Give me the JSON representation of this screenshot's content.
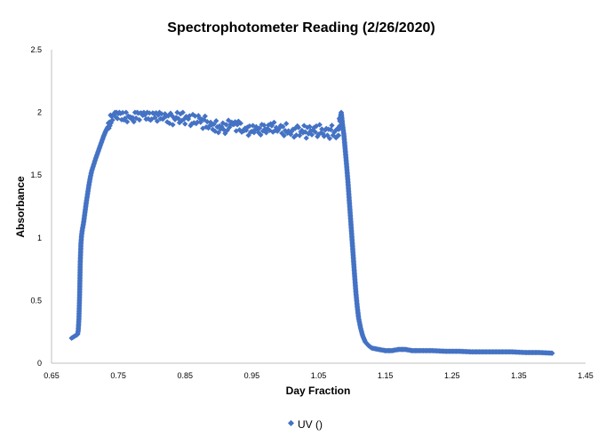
{
  "chart_data": {
    "type": "scatter",
    "title": "Spectrophotometer Reading (2/26/2020)",
    "xlabel": "Day Fraction",
    "ylabel": "Absorbance",
    "xlim": [
      0.65,
      1.45
    ],
    "ylim": [
      0,
      2.5
    ],
    "x_ticks": [
      "0.65",
      "0.75",
      "0.85",
      "0.95",
      "1.05",
      "1.15",
      "1.25",
      "1.35",
      "1.45"
    ],
    "y_ticks": [
      "0",
      "0.5",
      "1",
      "1.5",
      "2",
      "2.5"
    ],
    "grid": false,
    "legend": "bottom",
    "marker_color": "#4472C4",
    "series": [
      {
        "name": "UV ()",
        "points": [
          [
            0.68,
            0.2
          ],
          [
            0.683,
            0.21
          ],
          [
            0.686,
            0.22
          ],
          [
            0.689,
            0.23
          ],
          [
            0.69,
            0.26
          ],
          [
            0.691,
            0.35
          ],
          [
            0.692,
            0.53
          ],
          [
            0.693,
            0.8
          ],
          [
            0.694,
            0.95
          ],
          [
            0.695,
            1.02
          ],
          [
            0.696,
            1.06
          ],
          [
            0.698,
            1.12
          ],
          [
            0.7,
            1.2
          ],
          [
            0.702,
            1.28
          ],
          [
            0.704,
            1.35
          ],
          [
            0.706,
            1.42
          ],
          [
            0.708,
            1.48
          ],
          [
            0.71,
            1.53
          ],
          [
            0.713,
            1.58
          ],
          [
            0.716,
            1.63
          ],
          [
            0.72,
            1.69
          ],
          [
            0.724,
            1.75
          ],
          [
            0.728,
            1.81
          ],
          [
            0.732,
            1.86
          ],
          [
            0.736,
            1.9
          ],
          [
            0.74,
            1.94
          ],
          [
            0.745,
            1.97
          ],
          [
            0.75,
            1.99
          ],
          [
            0.76,
            1.98
          ],
          [
            0.77,
            1.96
          ],
          [
            0.78,
            1.98
          ],
          [
            0.79,
            1.97
          ],
          [
            0.8,
            1.96
          ],
          [
            0.81,
            1.99
          ],
          [
            0.82,
            1.97
          ],
          [
            0.83,
            1.95
          ],
          [
            0.84,
            1.96
          ],
          [
            0.85,
            1.95
          ],
          [
            0.86,
            1.93
          ],
          [
            0.87,
            1.94
          ],
          [
            0.88,
            1.92
          ],
          [
            0.89,
            1.9
          ],
          [
            0.9,
            1.89
          ],
          [
            0.91,
            1.87
          ],
          [
            0.92,
            1.9
          ],
          [
            0.93,
            1.88
          ],
          [
            0.94,
            1.86
          ],
          [
            0.95,
            1.88
          ],
          [
            0.96,
            1.87
          ],
          [
            0.97,
            1.86
          ],
          [
            0.98,
            1.87
          ],
          [
            0.99,
            1.86
          ],
          [
            1.0,
            1.87
          ],
          [
            1.01,
            1.85
          ],
          [
            1.02,
            1.86
          ],
          [
            1.03,
            1.84
          ],
          [
            1.04,
            1.85
          ],
          [
            1.05,
            1.85
          ],
          [
            1.06,
            1.84
          ],
          [
            1.07,
            1.85
          ],
          [
            1.075,
            1.84
          ],
          [
            1.08,
            1.86
          ],
          [
            1.084,
            2.0
          ],
          [
            1.086,
            1.9
          ],
          [
            1.088,
            1.82
          ],
          [
            1.09,
            1.7
          ],
          [
            1.092,
            1.58
          ],
          [
            1.094,
            1.45
          ],
          [
            1.096,
            1.3
          ],
          [
            1.098,
            1.15
          ],
          [
            1.1,
            1.0
          ],
          [
            1.102,
            0.85
          ],
          [
            1.104,
            0.7
          ],
          [
            1.106,
            0.56
          ],
          [
            1.108,
            0.45
          ],
          [
            1.11,
            0.36
          ],
          [
            1.113,
            0.28
          ],
          [
            1.116,
            0.22
          ],
          [
            1.12,
            0.17
          ],
          [
            1.125,
            0.14
          ],
          [
            1.13,
            0.12
          ],
          [
            1.14,
            0.11
          ],
          [
            1.15,
            0.1
          ],
          [
            1.16,
            0.1
          ],
          [
            1.17,
            0.11
          ],
          [
            1.18,
            0.11
          ],
          [
            1.19,
            0.1
          ],
          [
            1.2,
            0.1
          ],
          [
            1.22,
            0.1
          ],
          [
            1.24,
            0.095
          ],
          [
            1.26,
            0.095
          ],
          [
            1.28,
            0.09
          ],
          [
            1.3,
            0.09
          ],
          [
            1.32,
            0.09
          ],
          [
            1.34,
            0.09
          ],
          [
            1.36,
            0.085
          ],
          [
            1.38,
            0.085
          ],
          [
            1.4,
            0.08
          ]
        ]
      }
    ]
  }
}
